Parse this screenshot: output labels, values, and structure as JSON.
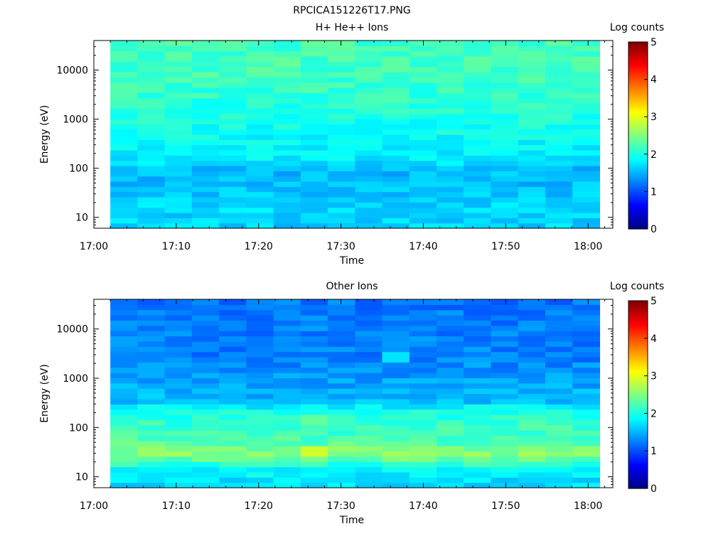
{
  "figure_title": "RPCICA151226T17.PNG",
  "chart_data": [
    {
      "type": "heatmap",
      "title": "H+ He++ Ions",
      "xlabel": "Time",
      "ylabel": "Energy (eV)",
      "x_ticks": [
        "17:00",
        "17:10",
        "17:20",
        "17:30",
        "17:40",
        "17:50",
        "18:00"
      ],
      "x_range": [
        "17:00",
        "18:03"
      ],
      "data_start": "17:02",
      "y_scale": "log",
      "y_ticks": [
        "10",
        "100",
        "1000",
        "10000"
      ],
      "y_range": [
        6,
        40000
      ],
      "colorbar": {
        "label": "Log counts",
        "ticks": [
          "0",
          "1",
          "2",
          "3",
          "4",
          "5"
        ],
        "range": [
          0,
          5
        ]
      },
      "time_bin_minutes": 3.3,
      "energy_profile": [
        {
          "energy": 8,
          "level": 1.65
        },
        {
          "energy": 15,
          "level": 1.7
        },
        {
          "energy": 30,
          "level": 1.6
        },
        {
          "energy": 60,
          "level": 1.55
        },
        {
          "energy": 100,
          "level": 1.55
        },
        {
          "energy": 150,
          "level": 1.8
        },
        {
          "energy": 300,
          "level": 1.85
        },
        {
          "energy": 1000,
          "level": 2.0
        },
        {
          "energy": 3000,
          "level": 2.1
        },
        {
          "energy": 10000,
          "level": 2.2
        },
        {
          "energy": 40000,
          "level": 2.2
        }
      ]
    },
    {
      "type": "heatmap",
      "title": "Other Ions",
      "xlabel": "Time",
      "ylabel": "Energy (eV)",
      "x_ticks": [
        "17:00",
        "17:10",
        "17:20",
        "17:30",
        "17:40",
        "17:50",
        "18:00"
      ],
      "x_range": [
        "17:00",
        "18:03"
      ],
      "data_start": "17:02",
      "y_scale": "log",
      "y_ticks": [
        "10",
        "100",
        "1000",
        "10000"
      ],
      "y_range": [
        6,
        40000
      ],
      "colorbar": {
        "label": "Log counts",
        "ticks": [
          "0",
          "1",
          "2",
          "3",
          "4",
          "5"
        ],
        "range": [
          0,
          5
        ]
      },
      "time_bin_minutes": 3.3,
      "energy_profile": [
        {
          "energy": 8,
          "level": 1.7
        },
        {
          "energy": 15,
          "level": 1.9
        },
        {
          "energy": 22,
          "level": 2.3
        },
        {
          "energy": 32,
          "level": 2.6
        },
        {
          "energy": 45,
          "level": 2.3
        },
        {
          "energy": 100,
          "level": 2.15
        },
        {
          "energy": 220,
          "level": 2.0
        },
        {
          "energy": 350,
          "level": 1.55
        },
        {
          "energy": 1000,
          "level": 1.4
        },
        {
          "energy": 3000,
          "level": 1.25
        },
        {
          "energy": 10000,
          "level": 1.25
        },
        {
          "energy": 40000,
          "level": 1.2
        }
      ],
      "hotspots": [
        {
          "time": "17:26",
          "energy": 32,
          "level": 2.9
        },
        {
          "time": "17:26",
          "energy": 150,
          "level": 2.35
        },
        {
          "time": "17:36",
          "energy": 2700,
          "level": 1.75
        }
      ]
    }
  ]
}
